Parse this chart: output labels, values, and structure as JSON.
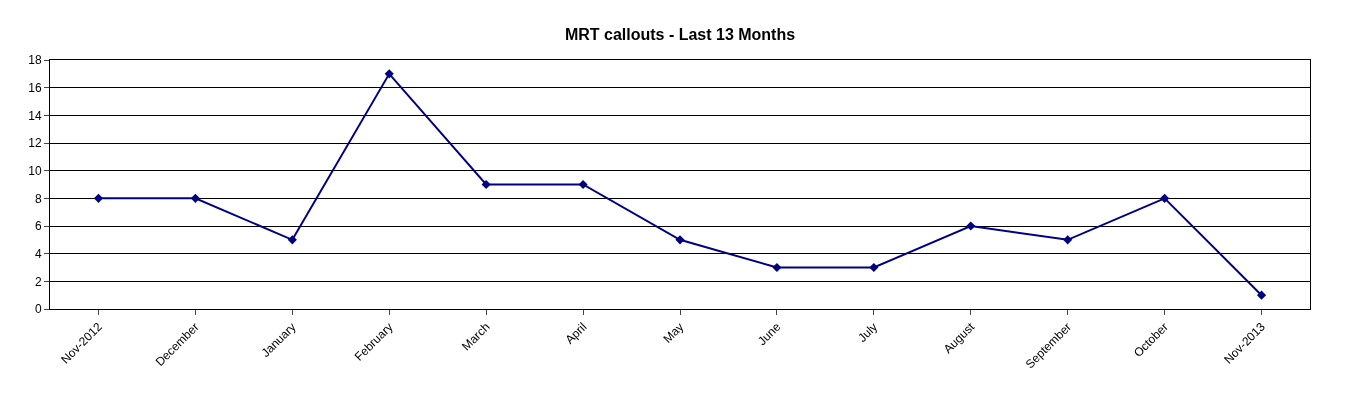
{
  "chart_data": {
    "type": "line",
    "title": "MRT callouts - Last 13 Months",
    "categories": [
      "Nov-2012",
      "December",
      "January",
      "February",
      "March",
      "April",
      "May",
      "June",
      "July",
      "August",
      "September",
      "October",
      "Nov-2013"
    ],
    "series": [
      {
        "color": "#000080",
        "values": [
          8,
          8,
          5,
          17,
          9,
          9,
          5,
          3,
          3,
          6,
          5,
          8,
          1
        ]
      }
    ],
    "ylim": [
      0,
      18
    ],
    "yticks": [
      0,
      2,
      4,
      6,
      8,
      10,
      12,
      14,
      16,
      18
    ],
    "grid": "y",
    "marker": "diamond",
    "line_style": "solid"
  }
}
